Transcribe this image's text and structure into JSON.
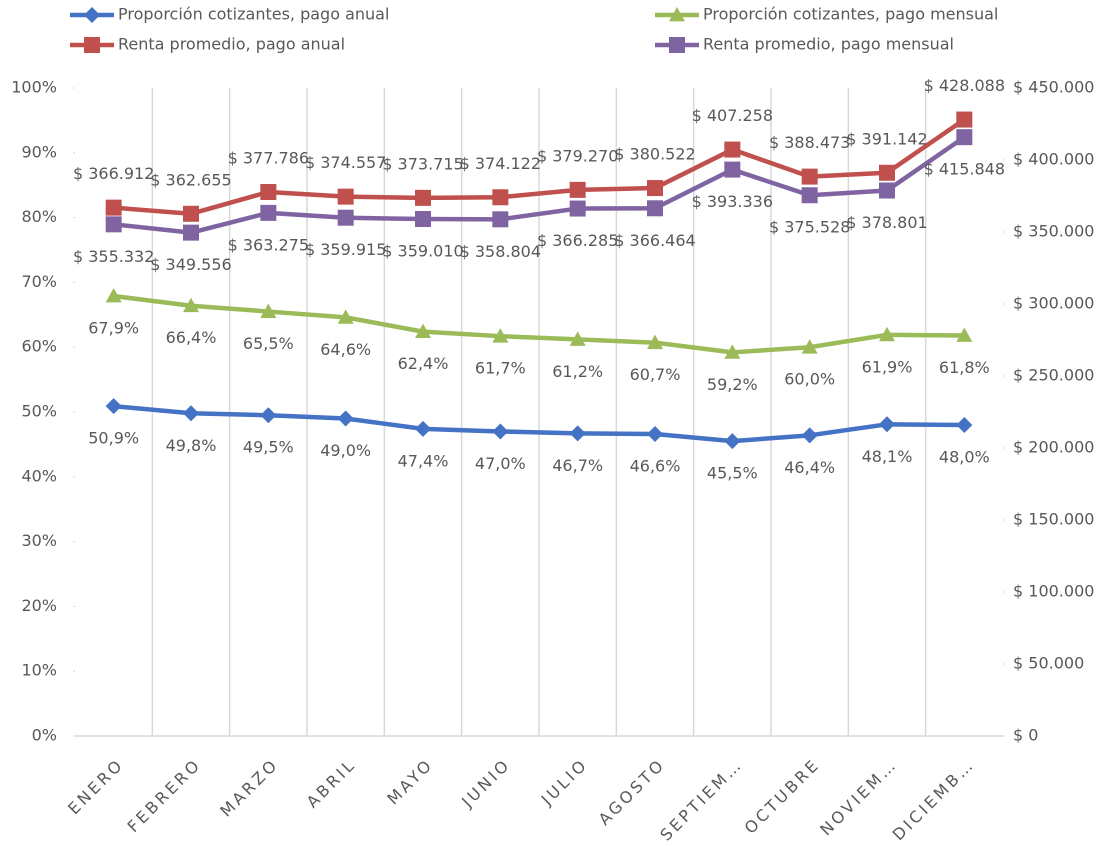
{
  "chart_data": {
    "type": "line",
    "legend": "top",
    "categories": [
      "ENERO",
      "FEBRERO",
      "MARZO",
      "ABRIL",
      "MAYO",
      "JUNIO",
      "JULIO",
      "AGOSTO",
      "SEPTIEM…",
      "OCTUBRE",
      "NOVIEM…",
      "DICIEMB…"
    ],
    "ylim": [
      0,
      100
    ],
    "yticks": [
      {
        "value": 0,
        "label": "0%"
      },
      {
        "value": 10,
        "label": "10%"
      },
      {
        "value": 20,
        "label": "20%"
      },
      {
        "value": 30,
        "label": "30%"
      },
      {
        "value": 40,
        "label": "40%"
      },
      {
        "value": 50,
        "label": "50%"
      },
      {
        "value": 60,
        "label": "60%"
      },
      {
        "value": 70,
        "label": "70%"
      },
      {
        "value": 80,
        "label": "80%"
      },
      {
        "value": 90,
        "label": "90%"
      },
      {
        "value": 100,
        "label": "100%"
      }
    ],
    "y2lim": [
      0,
      450000
    ],
    "y2ticks": [
      {
        "value": 0,
        "label": "$ 0"
      },
      {
        "value": 50000,
        "label": "$ 50.000"
      },
      {
        "value": 100000,
        "label": "$ 100.000"
      },
      {
        "value": 150000,
        "label": "$ 150.000"
      },
      {
        "value": 200000,
        "label": "$ 200.000"
      },
      {
        "value": 250000,
        "label": "$ 250.000"
      },
      {
        "value": 300000,
        "label": "$ 300.000"
      },
      {
        "value": 350000,
        "label": "$ 350.000"
      },
      {
        "value": 400000,
        "label": "$ 400.000"
      },
      {
        "value": 450000,
        "label": "$ 450.000"
      }
    ],
    "series": [
      {
        "name": "Proporción cotizantes, pago anual",
        "color": "#4472c4",
        "marker": "diamond",
        "values": [
          50.9,
          49.8,
          49.5,
          49.0,
          47.4,
          47.0,
          46.7,
          46.6,
          45.5,
          46.4,
          48.1,
          48.0
        ],
        "value_labels": [
          "50,9%",
          "49,8%",
          "49,5%",
          "49,0%",
          "47,4%",
          "47,0%",
          "46,7%",
          "46,6%",
          "45,5%",
          "46,4%",
          "48,1%",
          "48,0%"
        ]
      },
      {
        "name": "Proporción cotizantes, pago mensual",
        "color": "#9bbb59",
        "marker": "triangle",
        "values": [
          67.9,
          66.4,
          65.5,
          64.6,
          62.4,
          61.7,
          61.2,
          60.7,
          59.2,
          60.0,
          61.9,
          61.8
        ],
        "value_labels": [
          "67,9%",
          "66,4%",
          "65,5%",
          "64,6%",
          "62,4%",
          "61,7%",
          "61,2%",
          "60,7%",
          "59,2%",
          "60,0%",
          "61,9%",
          "61,8%"
        ]
      },
      {
        "name": "Renta promedio, pago anual",
        "color": "#c0504d",
        "marker": "square",
        "axis": "y2",
        "values": [
          366912,
          362655,
          377786,
          374557,
          373715,
          374122,
          379270,
          380522,
          407258,
          388473,
          391142,
          428088
        ],
        "value_labels": [
          "$ 366.912",
          "$ 362.655",
          "$ 377.786",
          "$ 374.557",
          "$ 373.715",
          "$ 374.122",
          "$ 379.270",
          "$ 380.522",
          "$ 407.258",
          "$ 388.473",
          "$ 391.142",
          "$ 428.088"
        ]
      },
      {
        "name": "Renta promedio, pago mensual",
        "color": "#8064a2",
        "marker": "square",
        "axis": "y2",
        "values": [
          355332,
          349556,
          363275,
          359915,
          359010,
          358804,
          366285,
          366464,
          393336,
          375528,
          378801,
          415848
        ],
        "value_labels": [
          "$ 355.332",
          "$ 349.556",
          "$ 363.275",
          "$ 359.915",
          "$ 359.010",
          "$ 358.804",
          "$ 366.285",
          "$ 366.464",
          "$ 393.336",
          "$ 375.528",
          "$ 378.801",
          "$ 415.848"
        ]
      }
    ]
  }
}
